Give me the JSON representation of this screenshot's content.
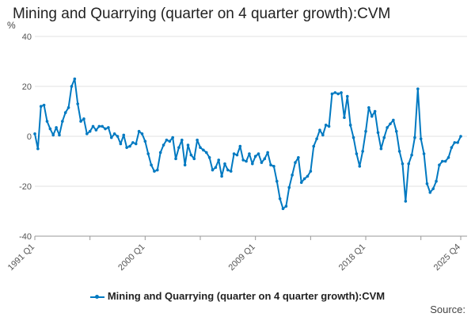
{
  "chart_data": {
    "type": "line",
    "title": "Mining and Quarrying (quarter on 4 quarter growth):CVM",
    "ylabel": "%",
    "xlabel": "",
    "ylim": [
      -40,
      40
    ],
    "yticks": [
      40,
      20,
      0,
      -20,
      -40
    ],
    "x_start": "1991 Q1",
    "x_end": "2025 Q4",
    "xtick_labels": [
      "1991 Q1",
      "2000 Q1",
      "2009 Q1",
      "2018 Q1",
      "2025 Q4"
    ],
    "xtick_indices": [
      0,
      36,
      72,
      108,
      139
    ],
    "grid": true,
    "legend_position": "bottom",
    "series": [
      {
        "name": "Mining and Quarrying (quarter on 4 quarter growth):CVM",
        "color": "#0079c1",
        "values": [
          1,
          -5,
          12,
          12.5,
          6,
          3,
          0.5,
          3.5,
          0.5,
          6,
          9.5,
          11.5,
          20,
          23,
          13,
          6,
          7,
          1,
          2,
          4,
          2.5,
          4,
          4,
          3,
          3.5,
          -0.5,
          1,
          0,
          -3,
          0.5,
          -4.5,
          -4,
          -2.5,
          -3,
          2,
          1,
          -2,
          -7,
          -11.5,
          -14,
          -13.5,
          -6.5,
          -3.5,
          -1.5,
          -2,
          -0.5,
          -9,
          -4.5,
          -1.5,
          -11.5,
          -3.5,
          -7.5,
          -9,
          -1.5,
          -4.5,
          -5.5,
          -6.5,
          -8.5,
          -13.5,
          -12.5,
          -9.5,
          -16,
          -11,
          -13.5,
          -14,
          -7,
          -7.5,
          -4,
          -9.5,
          -10,
          -7,
          -11,
          -8,
          -7,
          -10.5,
          -9,
          -6.5,
          -11.5,
          -12,
          -18,
          -25,
          -29,
          -28,
          -20.5,
          -15.5,
          -10.5,
          -8.5,
          -18.5,
          -17,
          -16,
          -14,
          -4,
          -1,
          2.5,
          0.5,
          4.5,
          4,
          17,
          17.5,
          17,
          17.5,
          7.5,
          16,
          4.5,
          -0.5,
          -7,
          -12,
          -6,
          2,
          11.5,
          8,
          10,
          1.5,
          -5,
          -0.5,
          3.5,
          5,
          6.5,
          2,
          -6,
          -11,
          -26,
          -11,
          -7.5,
          -0.5,
          19,
          -1,
          -7,
          -19,
          -22.5,
          -21,
          -18,
          -11.5,
          -10,
          -10,
          -8.5,
          -4.5,
          -2.5,
          -2.5,
          0
        ]
      }
    ]
  },
  "source_label": "Source:"
}
